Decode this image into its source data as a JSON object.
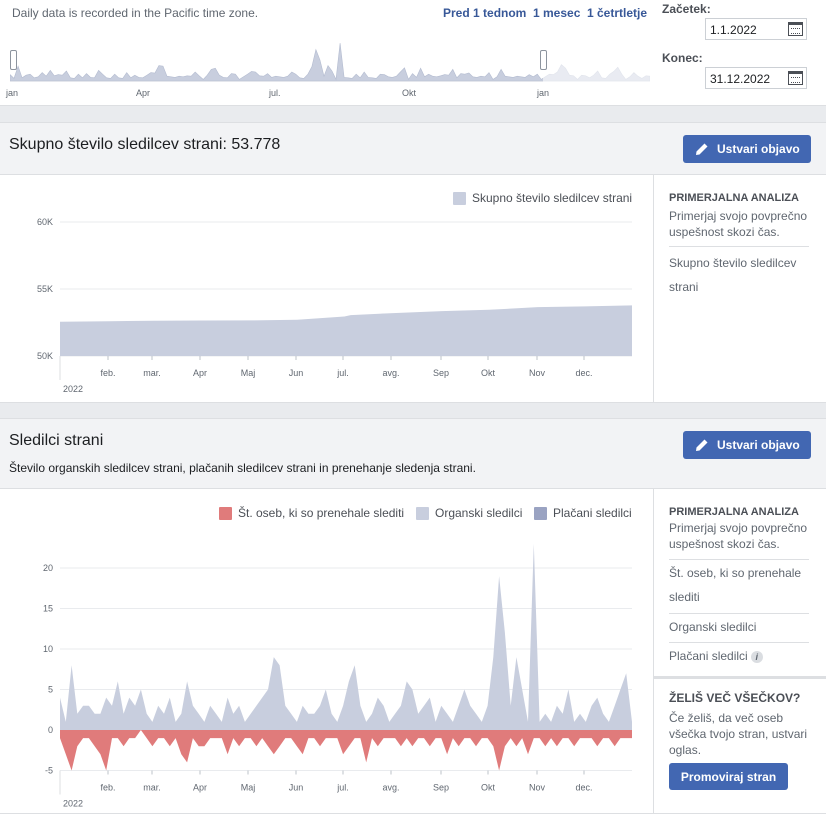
{
  "top": {
    "timezone_note": "Daily data is recorded in the Pacific time zone.",
    "quick_ranges": [
      "Pred 1 tednom",
      "1 mesec",
      "1 četrtletje"
    ],
    "overview_months": [
      "jan",
      "Apr",
      "jul.",
      "Okt",
      "jan"
    ],
    "start_label": "Začetek:",
    "start_value": "1.1.2022",
    "end_label": "Konec:",
    "end_value": "31.12.2022"
  },
  "total_section": {
    "title": "Skupno število sledilcev strani: 53.778",
    "create_button": "Ustvari objavo",
    "legend": "Skupno število sledilcev strani",
    "side_heading": "PRIMERJALNA ANALIZA",
    "side_text": "Primerjaj svojo povprečno uspešnost skozi čas.",
    "side_item": "Skupno število sledilcev strani"
  },
  "followers_section": {
    "title": "Sledilci strani",
    "description": "Število organskih sledilcev strani, plačanih sledilcev strani in prenehanje sledenja strani.",
    "create_button": "Ustvari objavo",
    "legend": [
      "Št. oseb, ki so prenehale slediti",
      "Organski sledilci",
      "Plačani sledilci"
    ],
    "side_heading": "PRIMERJALNA ANALIZA",
    "side_text": "Primerjaj svojo povprečno uspešnost skozi čas.",
    "side_items": [
      "Št. oseb, ki so prenehale slediti",
      "Organski sledilci",
      "Plačani sledilci"
    ],
    "promo_heading": "ŽELIŠ VEČ VŠEČKOV?",
    "promo_text": "Če želiš, da več oseb všečka tvojo stran, ustvari oglas.",
    "promo_button": "Promoviraj stran"
  },
  "colors": {
    "accent": "#4267b2",
    "total_fill": "#c8cede",
    "organic": "#c8cede",
    "paid": "#9aa3c2",
    "unfollow": "#e07b7b"
  },
  "chart_data": [
    {
      "type": "area",
      "x_tick_labels": [
        "feb.",
        "mar.",
        "Apr",
        "Maj",
        "Jun",
        "jul.",
        "avg.",
        "Sep",
        "Okt",
        "Nov",
        "dec."
      ],
      "year_label": "2022",
      "y_ticks": [
        "60K",
        "55K",
        "50K"
      ],
      "ylim": [
        50000,
        60000
      ],
      "series": [
        {
          "name": "Skupno število sledilcev strani",
          "x": [
            "2022-01-01",
            "2022-02-01",
            "2022-03-01",
            "2022-04-01",
            "2022-05-01",
            "2022-06-01",
            "2022-07-01",
            "2022-07-05",
            "2022-08-01",
            "2022-09-01",
            "2022-10-01",
            "2022-11-01",
            "2022-12-01",
            "2022-12-31"
          ],
          "values": [
            52550,
            52600,
            52630,
            52650,
            52660,
            52700,
            52950,
            53050,
            53200,
            53350,
            53450,
            53650,
            53700,
            53778
          ]
        }
      ],
      "grid": true,
      "legend_position": "top-right"
    },
    {
      "type": "area",
      "x_tick_labels": [
        "feb.",
        "mar.",
        "Apr",
        "Maj",
        "Jun",
        "jul.",
        "avg.",
        "Sep",
        "Okt",
        "Nov",
        "dec."
      ],
      "year_label": "2022",
      "y_ticks": [
        "20",
        "15",
        "10",
        "5",
        "0",
        "-5"
      ],
      "ylim": [
        -5,
        24
      ],
      "grid": true,
      "legend_position": "top-right",
      "series": [
        {
          "name": "Organski sledilci",
          "values": [
            4,
            1,
            8,
            2,
            3,
            3,
            2,
            2,
            4,
            3,
            6,
            2,
            4,
            3,
            5,
            2,
            1,
            3,
            2,
            4,
            1,
            2,
            6,
            3,
            2,
            1,
            3,
            2,
            1,
            4,
            2,
            3,
            1,
            2,
            3,
            4,
            5,
            9,
            8,
            3,
            2,
            1,
            3,
            2,
            2,
            3,
            5,
            2,
            1,
            3,
            6,
            8,
            3,
            1,
            2,
            4,
            3,
            1,
            2,
            3,
            6,
            5,
            2,
            3,
            4,
            1,
            3,
            2,
            1,
            3,
            5,
            3,
            2,
            1,
            3,
            9,
            19,
            12,
            3,
            9,
            5,
            1,
            23,
            1,
            2,
            1,
            3,
            2,
            5,
            1,
            2,
            1,
            3,
            4,
            2,
            1,
            3,
            5,
            7,
            1
          ]
        },
        {
          "name": "Plačani sledilci",
          "values": [
            0,
            0,
            0,
            0,
            0,
            0,
            0,
            0,
            0,
            0,
            0,
            0,
            0,
            0,
            0,
            0,
            0,
            0,
            0,
            0,
            0,
            0,
            0,
            0,
            0,
            0,
            0,
            0,
            0,
            0,
            0,
            0,
            0,
            0,
            0,
            0,
            0,
            0,
            0,
            0,
            0,
            0,
            0,
            0,
            0,
            0,
            0,
            0,
            0,
            0,
            0,
            0,
            0,
            0,
            0,
            0,
            0,
            0,
            0,
            0,
            0,
            0,
            0,
            0,
            0,
            0,
            0,
            0,
            0,
            0,
            0,
            0,
            0,
            0,
            0,
            0,
            0,
            0,
            0,
            0,
            0,
            0,
            0,
            0,
            0,
            0,
            0,
            0,
            0,
            0,
            0,
            0,
            0,
            0,
            0,
            0,
            0,
            0,
            0,
            0
          ]
        },
        {
          "name": "Št. oseb, ki so prenehale slediti",
          "values": [
            -1,
            -3,
            -5,
            -2,
            -1,
            -1,
            -2,
            -3,
            -5,
            -1,
            -1,
            -2,
            -1,
            -1,
            0,
            -1,
            -2,
            -1,
            -1,
            -2,
            -1,
            -3,
            -4,
            -1,
            -2,
            -2,
            -1,
            -1,
            -1,
            -3,
            -1,
            -2,
            -1,
            -1,
            -2,
            -1,
            -2,
            -3,
            -2,
            -1,
            -1,
            -2,
            -3,
            -1,
            -1,
            -2,
            -1,
            -1,
            -1,
            -3,
            -2,
            -1,
            -1,
            -4,
            -1,
            -2,
            -1,
            -1,
            -1,
            -2,
            -1,
            -2,
            -1,
            -1,
            -2,
            -1,
            -1,
            -3,
            -1,
            -2,
            -1,
            -1,
            -2,
            -1,
            -1,
            -2,
            -5,
            -2,
            -1,
            -2,
            -1,
            -3,
            -1,
            -1,
            -2,
            -1,
            -2,
            -1,
            -1,
            -2,
            -1,
            -1,
            -1,
            -2,
            -1,
            -1,
            -2,
            -1,
            -1,
            -1
          ]
        }
      ]
    }
  ]
}
